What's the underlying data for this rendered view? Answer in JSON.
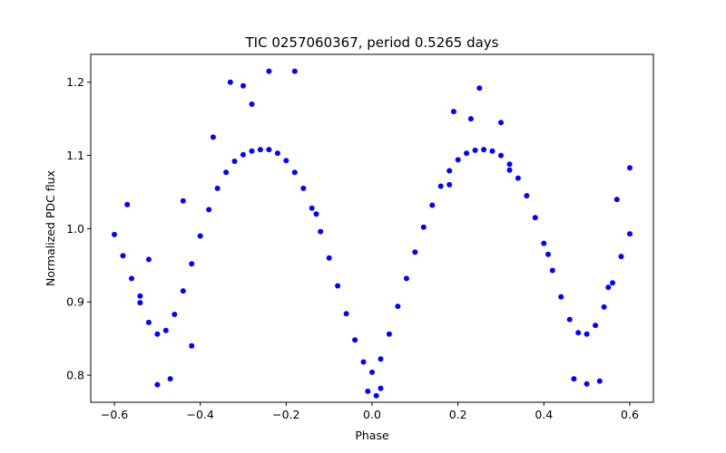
{
  "chart_data": {
    "type": "scatter",
    "title": "TIC 0257060367, period 0.5265 days",
    "xlabel": "Phase",
    "ylabel": "Normalized PDC flux",
    "xlim": [
      -0.655,
      0.655
    ],
    "ylim": [
      0.763,
      1.238
    ],
    "xticks": [
      -0.6,
      -0.4,
      -0.2,
      0.0,
      0.2,
      0.4,
      0.6
    ],
    "xtick_labels": [
      "−0.6",
      "−0.4",
      "−0.2",
      "0.0",
      "0.2",
      "0.4",
      "0.6"
    ],
    "yticks": [
      0.8,
      0.9,
      1.0,
      1.1,
      1.2
    ],
    "ytick_labels": [
      "0.8",
      "0.9",
      "1.0",
      "1.1",
      "1.2"
    ],
    "grid": false,
    "legend": "none",
    "marker_color": "#0000ff",
    "series": [
      {
        "x": [
          -0.6,
          -0.58,
          -0.56,
          -0.54,
          -0.52,
          -0.5,
          -0.48,
          -0.46,
          -0.44,
          -0.42,
          -0.4,
          -0.38,
          -0.36,
          -0.34,
          -0.32,
          -0.3,
          -0.28,
          -0.26,
          -0.24,
          -0.22,
          -0.2,
          -0.18,
          -0.16,
          -0.14,
          -0.12,
          -0.1,
          -0.08,
          -0.06,
          -0.04,
          -0.02,
          0.0,
          0.02,
          0.04,
          0.06,
          0.08,
          0.1,
          0.12,
          0.14,
          0.16,
          0.18,
          0.2,
          0.22,
          0.24,
          0.26,
          0.28,
          0.3,
          0.32,
          0.34,
          0.36,
          0.38,
          0.4,
          0.42,
          0.44,
          0.46,
          0.48,
          0.5,
          0.52,
          0.54,
          0.56,
          0.58,
          0.6
        ],
        "y": [
          0.992,
          0.963,
          0.932,
          0.899,
          0.872,
          0.856,
          0.861,
          0.883,
          0.915,
          0.952,
          0.99,
          1.026,
          1.055,
          1.077,
          1.092,
          1.101,
          1.106,
          1.108,
          1.108,
          1.103,
          1.093,
          1.077,
          1.055,
          1.028,
          0.996,
          0.96,
          0.922,
          0.884,
          0.848,
          0.818,
          0.804,
          0.822,
          0.856,
          0.894,
          0.932,
          0.968,
          1.002,
          1.032,
          1.058,
          1.079,
          1.094,
          1.103,
          1.107,
          1.108,
          1.106,
          1.1,
          1.088,
          1.069,
          1.045,
          1.015,
          0.98,
          0.943,
          0.907,
          0.876,
          0.858,
          0.856,
          0.868,
          0.893,
          0.926,
          0.962,
          0.993
        ]
      },
      {
        "x": [
          -0.33,
          -0.24,
          -0.18,
          -0.28,
          -0.3,
          0.25,
          0.19,
          0.23,
          0.3,
          -0.5,
          -0.47,
          0.5,
          0.47,
          0.53,
          0.01,
          0.02,
          -0.01,
          -0.52,
          -0.44,
          -0.37,
          0.41,
          0.6,
          0.57,
          -0.57,
          -0.42,
          0.32,
          0.18,
          -0.13,
          0.55,
          -0.54
        ],
        "y": [
          1.2,
          1.215,
          1.215,
          1.17,
          1.195,
          1.192,
          1.16,
          1.15,
          1.145,
          0.787,
          0.795,
          0.788,
          0.795,
          0.792,
          0.772,
          0.782,
          0.778,
          0.958,
          1.038,
          1.125,
          0.965,
          1.083,
          1.04,
          1.033,
          0.84,
          1.08,
          1.06,
          1.02,
          0.92,
          0.908
        ]
      }
    ]
  }
}
